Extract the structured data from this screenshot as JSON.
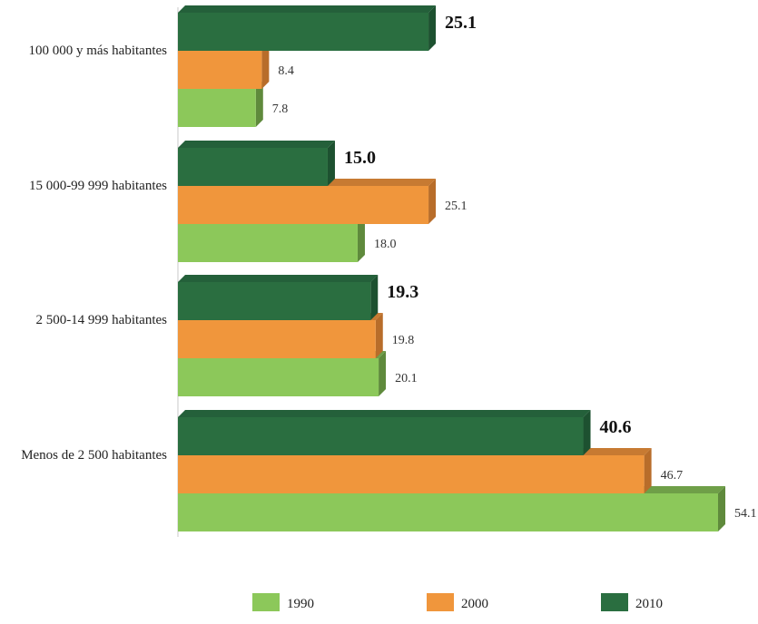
{
  "chart_data": {
    "type": "bar",
    "orientation": "horizontal",
    "three_d": true,
    "categories": [
      "100 000 y más habitantes",
      "15 000-99 999 habitantes",
      "2 500-14 999 habitantes",
      "Menos de 2 500 habitantes"
    ],
    "series": [
      {
        "name": "2010",
        "color": "#2a6e40",
        "side_color": "#1d5130",
        "top_color": "#24603a",
        "values": [
          25.1,
          15.0,
          19.3,
          40.6
        ],
        "labels": [
          "25.1",
          "15.0",
          "19.3",
          "40.6"
        ],
        "bold_labels": true
      },
      {
        "name": "2000",
        "color": "#f0963c",
        "side_color": "#b86d2a",
        "top_color": "#c77a32",
        "values": [
          8.4,
          25.1,
          19.8,
          46.7
        ],
        "labels": [
          "8.4",
          "25.1",
          "19.8",
          "46.7"
        ],
        "bold_labels": false
      },
      {
        "name": "1990",
        "color": "#8cc85a",
        "side_color": "#5f8a3c",
        "top_color": "#6f9f48",
        "values": [
          7.8,
          18.0,
          20.1,
          54.1
        ],
        "labels": [
          "7.8",
          "18.0",
          "20.1",
          "54.1"
        ],
        "bold_labels": false
      }
    ],
    "legend": {
      "placement": "bottom",
      "items": [
        {
          "name": "1990",
          "color": "#8cc85a"
        },
        {
          "name": "2000",
          "color": "#f0963c"
        },
        {
          "name": "2010",
          "color": "#2a6e40"
        }
      ]
    },
    "title": "",
    "xlabel": "",
    "ylabel": "",
    "grid": false,
    "value_axis_visible": false
  }
}
